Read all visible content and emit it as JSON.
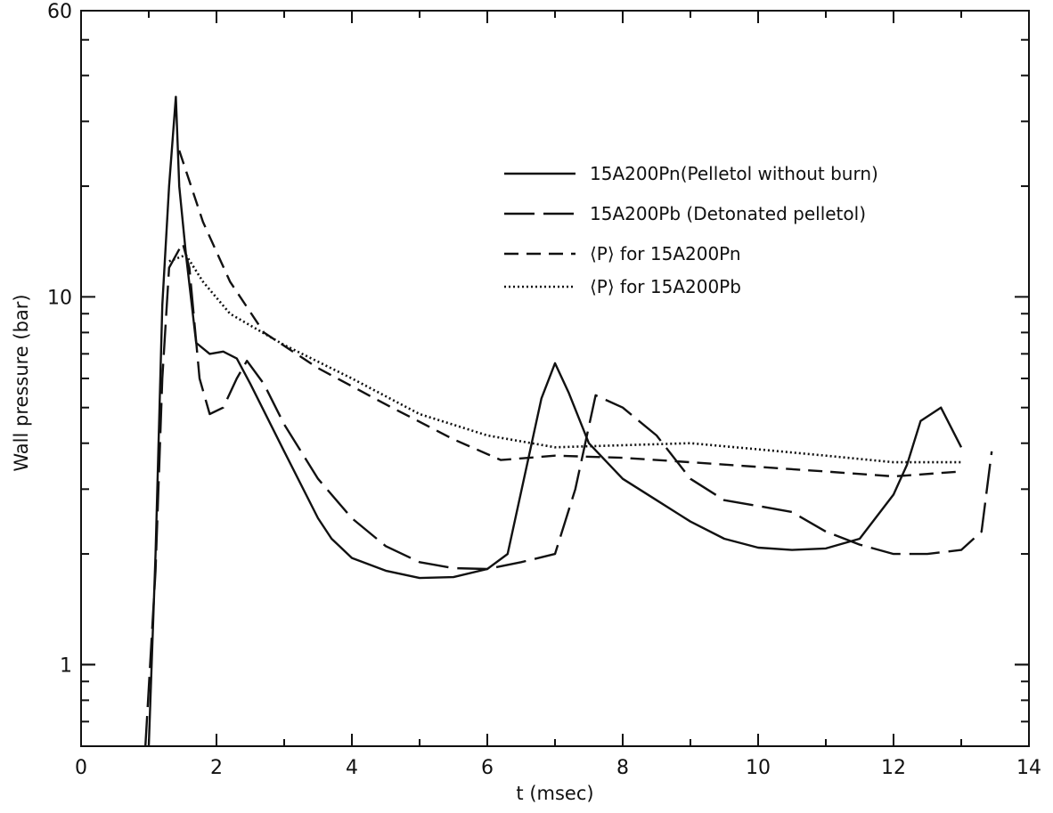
{
  "chart_data": {
    "type": "line",
    "title": "",
    "xlabel": "t (msec)",
    "ylabel": "Wall pressure (bar)",
    "x_scale": "linear",
    "y_scale": "log",
    "xlim": [
      0,
      14
    ],
    "ylim": [
      0.6,
      60
    ],
    "x_ticks": [
      0,
      2,
      4,
      6,
      8,
      10,
      12,
      14
    ],
    "x_tick_labels": [
      "0",
      "2",
      "4",
      "6",
      "8",
      "10",
      "12",
      "14"
    ],
    "y_ticks": [
      1,
      10,
      60
    ],
    "y_tick_labels": [
      "1",
      "10",
      "60"
    ],
    "grid": false,
    "legend_position": "upper-right",
    "series": [
      {
        "name": "15A200Pn(Pelletol without burn)",
        "dash": "solid",
        "points": [
          [
            1.0,
            0.6
          ],
          [
            1.1,
            2.0
          ],
          [
            1.2,
            9.5
          ],
          [
            1.3,
            20.0
          ],
          [
            1.4,
            35.0
          ],
          [
            1.45,
            20.0
          ],
          [
            1.55,
            13.0
          ],
          [
            1.7,
            7.5
          ],
          [
            1.9,
            7.0
          ],
          [
            2.1,
            7.1
          ],
          [
            2.3,
            6.8
          ],
          [
            2.5,
            5.8
          ],
          [
            3.0,
            3.8
          ],
          [
            3.5,
            2.5
          ],
          [
            3.7,
            2.2
          ],
          [
            4.0,
            1.95
          ],
          [
            4.5,
            1.8
          ],
          [
            5.0,
            1.72
          ],
          [
            5.5,
            1.73
          ],
          [
            6.0,
            1.82
          ],
          [
            6.3,
            2.0
          ],
          [
            6.8,
            5.3
          ],
          [
            7.0,
            6.6
          ],
          [
            7.2,
            5.5
          ],
          [
            7.5,
            4.0
          ],
          [
            8.0,
            3.2
          ],
          [
            8.5,
            2.8
          ],
          [
            9.0,
            2.45
          ],
          [
            9.5,
            2.2
          ],
          [
            10.0,
            2.08
          ],
          [
            10.5,
            2.05
          ],
          [
            11.0,
            2.07
          ],
          [
            11.5,
            2.2
          ],
          [
            12.0,
            2.9
          ],
          [
            12.2,
            3.5
          ],
          [
            12.4,
            4.6
          ],
          [
            12.7,
            5.0
          ],
          [
            13.0,
            3.9
          ]
        ]
      },
      {
        "name": "15A200Pb (Detonated pelletol)",
        "dash": "long-dash",
        "points": [
          [
            0.95,
            0.6
          ],
          [
            1.1,
            1.8
          ],
          [
            1.2,
            6.0
          ],
          [
            1.3,
            12.0
          ],
          [
            1.5,
            14.0
          ],
          [
            1.6,
            12.0
          ],
          [
            1.75,
            6.0
          ],
          [
            1.9,
            4.8
          ],
          [
            2.1,
            5.0
          ],
          [
            2.3,
            6.0
          ],
          [
            2.45,
            6.7
          ],
          [
            2.7,
            5.8
          ],
          [
            3.0,
            4.5
          ],
          [
            3.5,
            3.2
          ],
          [
            4.0,
            2.5
          ],
          [
            4.5,
            2.1
          ],
          [
            5.0,
            1.9
          ],
          [
            5.5,
            1.83
          ],
          [
            6.0,
            1.82
          ],
          [
            6.5,
            1.9
          ],
          [
            7.0,
            2.0
          ],
          [
            7.3,
            3.0
          ],
          [
            7.6,
            5.4
          ],
          [
            8.0,
            5.0
          ],
          [
            8.5,
            4.2
          ],
          [
            9.0,
            3.2
          ],
          [
            9.5,
            2.8
          ],
          [
            10.0,
            2.7
          ],
          [
            10.5,
            2.6
          ],
          [
            11.0,
            2.3
          ],
          [
            11.5,
            2.12
          ],
          [
            12.0,
            2.0
          ],
          [
            12.5,
            2.0
          ],
          [
            13.0,
            2.05
          ],
          [
            13.3,
            2.3
          ],
          [
            13.45,
            3.8
          ]
        ]
      },
      {
        "name": "⟨P⟩ for 15A200Pn",
        "dash": "medium-dash",
        "points": [
          [
            1.45,
            25.0
          ],
          [
            1.8,
            16.0
          ],
          [
            2.2,
            11.0
          ],
          [
            2.7,
            8.0
          ],
          [
            3.5,
            6.4
          ],
          [
            4.5,
            5.1
          ],
          [
            5.5,
            4.1
          ],
          [
            6.2,
            3.6
          ],
          [
            7.0,
            3.7
          ],
          [
            8.0,
            3.65
          ],
          [
            9.0,
            3.55
          ],
          [
            10.0,
            3.45
          ],
          [
            11.0,
            3.35
          ],
          [
            12.0,
            3.25
          ],
          [
            13.0,
            3.35
          ]
        ]
      },
      {
        "name": "⟨P⟩ for 15A200Pb",
        "dash": "dotted",
        "points": [
          [
            1.3,
            12.5
          ],
          [
            1.55,
            13.0
          ],
          [
            1.8,
            11.0
          ],
          [
            2.2,
            9.0
          ],
          [
            3.0,
            7.4
          ],
          [
            4.0,
            6.0
          ],
          [
            5.0,
            4.8
          ],
          [
            6.0,
            4.2
          ],
          [
            7.0,
            3.9
          ],
          [
            8.0,
            3.95
          ],
          [
            9.0,
            4.0
          ],
          [
            10.0,
            3.85
          ],
          [
            11.0,
            3.7
          ],
          [
            12.0,
            3.55
          ],
          [
            13.0,
            3.55
          ]
        ]
      }
    ]
  }
}
